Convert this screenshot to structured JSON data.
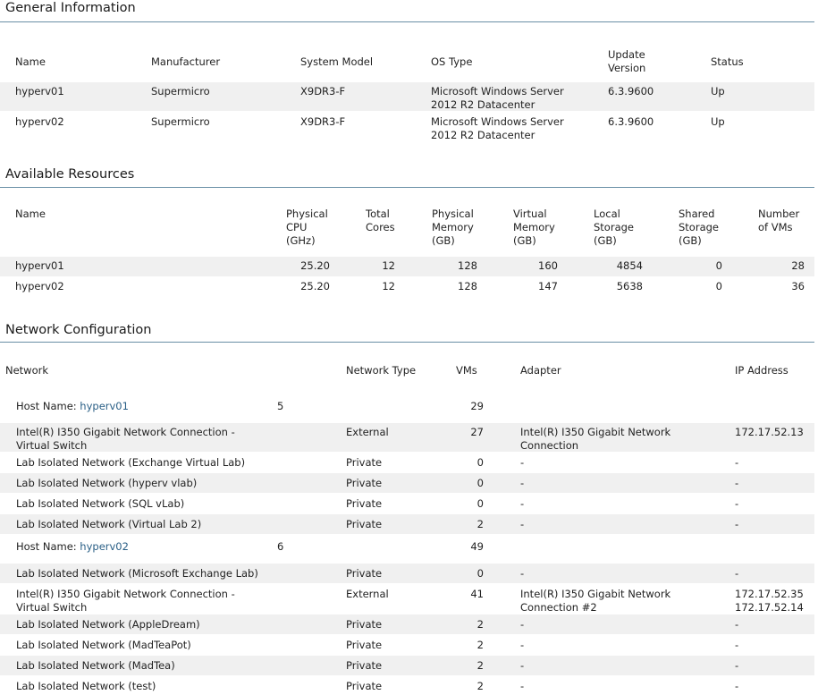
{
  "general": {
    "title": "General Information",
    "headers": {
      "name": "Name",
      "manufacturer": "Manufacturer",
      "model": "System Model",
      "os": "OS Type",
      "update_l1": "Update",
      "update_l2": "Version",
      "status": "Status"
    },
    "rows": [
      {
        "name": "hyperv01",
        "manufacturer": "Supermicro",
        "model": "X9DR3-F",
        "os_l1": "Microsoft Windows Server",
        "os_l2": "2012 R2 Datacenter",
        "update": "6.3.9600",
        "status": "Up"
      },
      {
        "name": "hyperv02",
        "manufacturer": "Supermicro",
        "model": "X9DR3-F",
        "os_l1": "Microsoft Windows Server",
        "os_l2": "2012 R2 Datacenter",
        "update": "6.3.9600",
        "status": "Up"
      }
    ]
  },
  "resources": {
    "title": "Available Resources",
    "headers": {
      "name": "Name",
      "cpu_l1": "Physical",
      "cpu_l2": "CPU",
      "cpu_l3": "(GHz)",
      "cores_l1": "Total",
      "cores_l2": "Cores",
      "pmem_l1": "Physical",
      "pmem_l2": "Memory",
      "pmem_l3": "(GB)",
      "vmem_l1": "Virtual",
      "vmem_l2": "Memory",
      "vmem_l3": "(GB)",
      "lstor_l1": "Local",
      "lstor_l2": "Storage",
      "lstor_l3": "(GB)",
      "sstor_l1": "Shared",
      "sstor_l2": "Storage",
      "sstor_l3": "(GB)",
      "vms_l1": "Number",
      "vms_l2": "of VMs"
    },
    "rows": [
      {
        "name": "hyperv01",
        "cpu": "25.20",
        "cores": "12",
        "pmem": "128",
        "vmem": "160",
        "lstor": "4854",
        "sstor": "0",
        "vms": "28"
      },
      {
        "name": "hyperv02",
        "cpu": "25.20",
        "cores": "12",
        "pmem": "128",
        "vmem": "147",
        "lstor": "5638",
        "sstor": "0",
        "vms": "36"
      }
    ]
  },
  "network": {
    "title": "Network Configuration",
    "headers": {
      "network": "Network",
      "type": "Network Type",
      "vms": "VMs",
      "adapter": "Adapter",
      "ip": "IP Address"
    },
    "host_label": "Host Name: ",
    "hosts": [
      {
        "name": "hyperv01",
        "count": "5",
        "vms": "29",
        "rows": [
          {
            "net_l1": "Intel(R) I350 Gigabit Network Connection -",
            "net_l2": "Virtual Switch",
            "type": "External",
            "vms": "27",
            "adapter_l1": "Intel(R) I350 Gigabit Network",
            "adapter_l2": "Connection",
            "ip_l1": "172.17.52.13",
            "ip_l2": ""
          },
          {
            "net_l1": "Lab Isolated Network (Exchange Virtual Lab)",
            "type": "Private",
            "vms": "0",
            "adapter_l1": "-",
            "ip_l1": "-"
          },
          {
            "net_l1": "Lab Isolated Network (hyperv vlab)",
            "type": "Private",
            "vms": "0",
            "adapter_l1": "-",
            "ip_l1": "-"
          },
          {
            "net_l1": "Lab Isolated Network (SQL vLab)",
            "type": "Private",
            "vms": "0",
            "adapter_l1": "-",
            "ip_l1": "-"
          },
          {
            "net_l1": "Lab Isolated Network (Virtual Lab 2)",
            "type": "Private",
            "vms": "2",
            "adapter_l1": "-",
            "ip_l1": "-"
          }
        ]
      },
      {
        "name": "hyperv02",
        "count": "6",
        "vms": "49",
        "rows": [
          {
            "net_l1": "Lab Isolated Network (Microsoft Exchange Lab)",
            "type": "Private",
            "vms": "0",
            "adapter_l1": "-",
            "ip_l1": "-"
          },
          {
            "net_l1": "Intel(R) I350 Gigabit Network Connection -",
            "net_l2": "Virtual Switch",
            "type": "External",
            "vms": "41",
            "adapter_l1": "Intel(R) I350 Gigabit Network",
            "adapter_l2": "Connection #2",
            "ip_l1": "172.17.52.35",
            "ip_l2": "172.17.52.14"
          },
          {
            "net_l1": "Lab Isolated Network (AppleDream)",
            "type": "Private",
            "vms": "2",
            "adapter_l1": "-",
            "ip_l1": "-"
          },
          {
            "net_l1": "Lab Isolated Network (MadTeaPot)",
            "type": "Private",
            "vms": "2",
            "adapter_l1": "-",
            "ip_l1": "-"
          },
          {
            "net_l1": "Lab Isolated Network (MadTea)",
            "type": "Private",
            "vms": "2",
            "adapter_l1": "-",
            "ip_l1": "-"
          },
          {
            "net_l1": "Lab Isolated Network (test)",
            "type": "Private",
            "vms": "2",
            "adapter_l1": "-",
            "ip_l1": "-"
          }
        ]
      }
    ]
  }
}
